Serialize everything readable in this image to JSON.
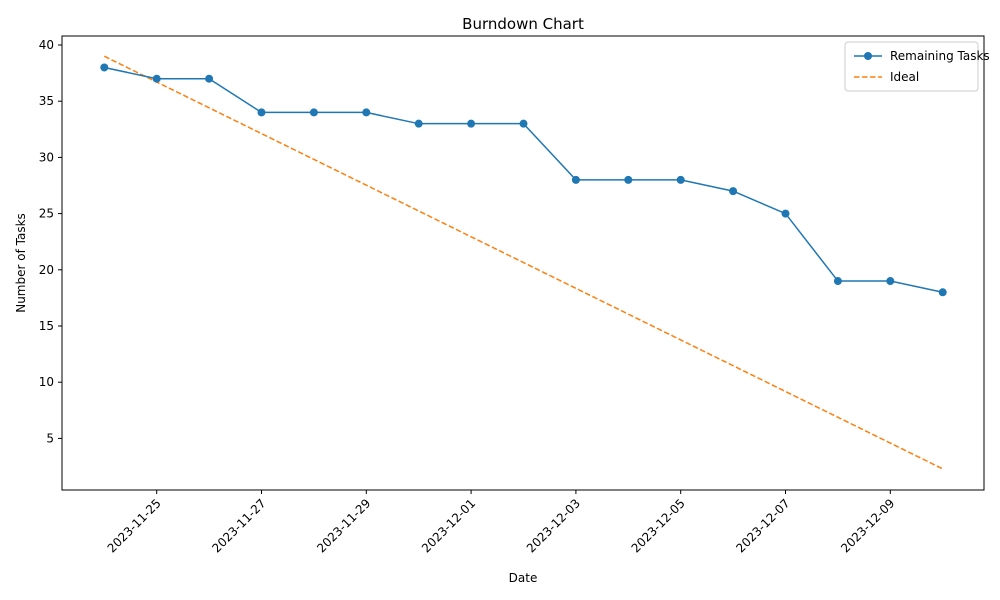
{
  "chart_data": {
    "type": "line",
    "title": "Burndown Chart",
    "xlabel": "Date",
    "ylabel": "Number of Tasks",
    "x": [
      "2023-11-24",
      "2023-11-25",
      "2023-11-26",
      "2023-11-27",
      "2023-11-28",
      "2023-11-29",
      "2023-11-30",
      "2023-12-01",
      "2023-12-02",
      "2023-12-03",
      "2023-12-04",
      "2023-12-05",
      "2023-12-06",
      "2023-12-07",
      "2023-12-08",
      "2023-12-09",
      "2023-12-10"
    ],
    "xticks": [
      "2023-11-25",
      "2023-11-27",
      "2023-11-29",
      "2023-12-01",
      "2023-12-03",
      "2023-12-05",
      "2023-12-07",
      "2023-12-09"
    ],
    "yticks": [
      5,
      10,
      15,
      20,
      25,
      30,
      35,
      40
    ],
    "ylim": [
      0.41,
      40.8
    ],
    "series": [
      {
        "name": "Remaining Tasks",
        "style": "solid-with-markers",
        "color": "#1f77b4",
        "values": [
          38,
          37,
          37,
          34,
          34,
          34,
          33,
          33,
          33,
          28,
          28,
          28,
          27,
          25,
          19,
          19,
          18
        ]
      },
      {
        "name": "Ideal",
        "style": "dashed",
        "color": "#ff7f0e",
        "start": 39,
        "end": 2.29
      }
    ],
    "legend_position": "top-right",
    "grid": false
  }
}
